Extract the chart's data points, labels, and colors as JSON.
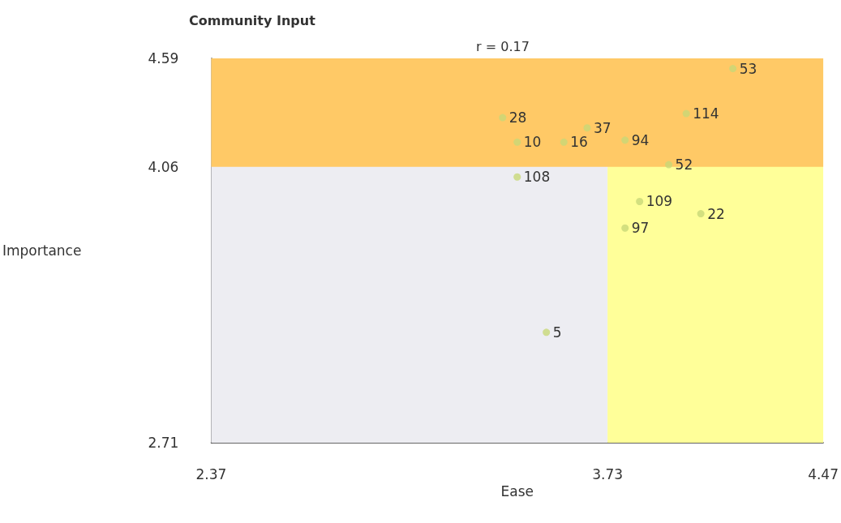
{
  "chart_data": {
    "type": "scatter",
    "title": "Community Input",
    "subtitle": "r = 0.17",
    "xlabel": "Ease",
    "ylabel": "Importance",
    "x": [
      3.37,
      3.42,
      3.58,
      3.66,
      3.79,
      4.0,
      4.16,
      3.94,
      3.42,
      3.84,
      4.05,
      3.79,
      3.52
    ],
    "values": [
      4.3,
      4.18,
      4.18,
      4.25,
      4.19,
      4.32,
      4.54,
      4.07,
      4.01,
      3.89,
      3.83,
      3.76,
      3.25
    ],
    "annotations": [
      {
        "text": "28",
        "x": 3.37,
        "y": 4.3
      },
      {
        "text": "10",
        "x": 3.42,
        "y": 4.18
      },
      {
        "text": "16",
        "x": 3.58,
        "y": 4.18
      },
      {
        "text": "37",
        "x": 3.66,
        "y": 4.25
      },
      {
        "text": "94",
        "x": 3.79,
        "y": 4.19
      },
      {
        "text": "114",
        "x": 4.0,
        "y": 4.32
      },
      {
        "text": "53",
        "x": 4.16,
        "y": 4.54
      },
      {
        "text": "52",
        "x": 3.94,
        "y": 4.07
      },
      {
        "text": "108",
        "x": 3.42,
        "y": 4.01
      },
      {
        "text": "109",
        "x": 3.84,
        "y": 3.89
      },
      {
        "text": "22",
        "x": 4.05,
        "y": 3.83
      },
      {
        "text": "97",
        "x": 3.79,
        "y": 3.76
      },
      {
        "text": "5",
        "x": 3.52,
        "y": 3.25
      }
    ],
    "color": "#c8d878",
    "marker": "circle",
    "grid": false,
    "xlim": [
      2.37,
      4.47
    ],
    "xticks": [
      2.37,
      3.73,
      4.47
    ],
    "ylim": [
      2.71,
      4.59
    ],
    "yticks": [
      2.71,
      4.06,
      4.59
    ],
    "bands": [
      {
        "axis": "x",
        "from": 2.37,
        "to": 3.73,
        "color": "#ededf2"
      },
      {
        "axis": "x",
        "from": 3.73,
        "to": 4.47,
        "color": "#ffff99"
      },
      {
        "axis": "y",
        "from": 4.06,
        "to": 4.59,
        "color": "#ffc966"
      }
    ]
  }
}
